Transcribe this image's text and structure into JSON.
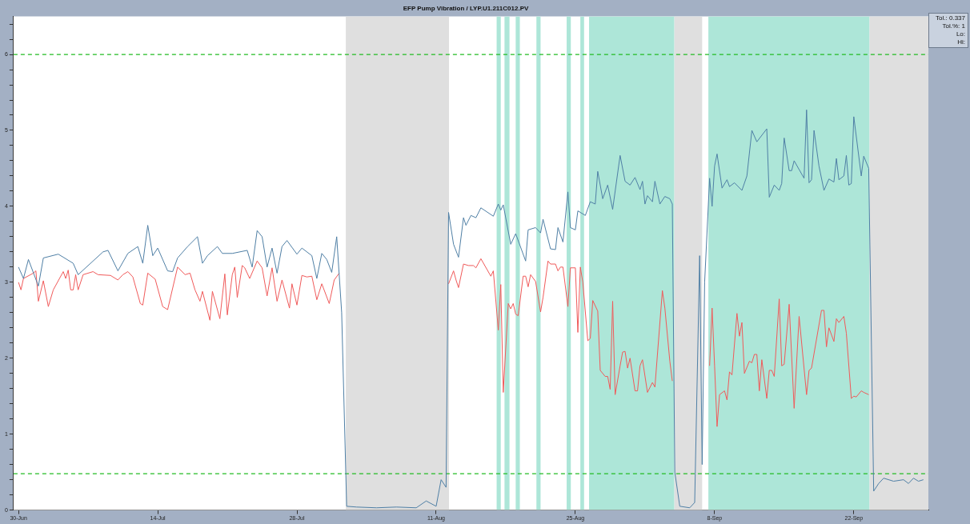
{
  "chart_data": {
    "type": "line",
    "title": "EFP Pump Vibration / LYP.U1.211C012.PV",
    "xlim": [
      "--06-29T12:00",
      "--09-29T12:00"
    ],
    "xticks": [
      {
        "value": "--06-30",
        "label": "30-Jun"
      },
      {
        "value": "--07-14",
        "label": "14-Jul"
      },
      {
        "value": "--07-28",
        "label": "28-Jul"
      },
      {
        "value": "--08-11",
        "label": "11-Aug"
      },
      {
        "value": "--08-25",
        "label": "25-Aug"
      },
      {
        "value": "--09-08",
        "label": "8-Sep"
      },
      {
        "value": "--09-22",
        "label": "22-Sep"
      }
    ],
    "ylim": [
      0,
      6.5
    ],
    "yticks": [
      0,
      {
        "value": 0.2,
        "label": null
      },
      {
        "value": 0.4,
        "label": null
      },
      {
        "value": 0.6,
        "label": null
      },
      {
        "value": 0.8,
        "label": null
      },
      1,
      {
        "value": 1.2,
        "label": null
      },
      {
        "value": 1.4,
        "label": null
      },
      {
        "value": 1.6,
        "label": null
      },
      {
        "value": 1.8,
        "label": null
      },
      2,
      {
        "value": 2.2,
        "label": null
      },
      {
        "value": 2.4,
        "label": null
      },
      {
        "value": 2.6,
        "label": null
      },
      {
        "value": 2.8,
        "label": null
      },
      3,
      {
        "value": 3.2,
        "label": null
      },
      {
        "value": 3.4,
        "label": null
      },
      {
        "value": 3.6,
        "label": null
      },
      {
        "value": 3.8,
        "label": null
      },
      4,
      {
        "value": 4.2,
        "label": null
      },
      {
        "value": 4.4,
        "label": null
      },
      {
        "value": 4.6,
        "label": null
      },
      {
        "value": 4.8,
        "label": null
      },
      5,
      {
        "value": 5.2,
        "label": null
      },
      {
        "value": 5.4,
        "label": null
      },
      {
        "value": 5.6,
        "label": null
      },
      {
        "value": 5.8,
        "label": null
      },
      6,
      {
        "value": 6.2,
        "label": null
      },
      {
        "value": 6.4,
        "label": null
      }
    ],
    "legend": false,
    "bands": [
      {
        "axis": "x",
        "from": "--08-01T22:00",
        "to": "--08-12T07:00",
        "color": "#dfdfdf"
      },
      {
        "axis": "x",
        "from": "--08-17T02:00",
        "to": "--08-17T12:00",
        "color": "#ade6d8"
      },
      {
        "axis": "x",
        "from": "--08-17T21:00",
        "to": "--08-18T09:00",
        "color": "#ade6d8"
      },
      {
        "axis": "x",
        "from": "--08-19T00:00",
        "to": "--08-19T10:00",
        "color": "#ade6d8"
      },
      {
        "axis": "x",
        "from": "--08-21T02:00",
        "to": "--08-21T12:00",
        "color": "#ade6d8"
      },
      {
        "axis": "x",
        "from": "--08-24T03:00",
        "to": "--08-24T13:00",
        "color": "#ade6d8"
      },
      {
        "axis": "x",
        "from": "--08-25T12:00",
        "to": "--08-25T21:00",
        "color": "#ade6d8"
      },
      {
        "axis": "x",
        "from": "--08-26T09:00",
        "to": "--09-03T23:00",
        "color": "#ade6d8"
      },
      {
        "axis": "x",
        "from": "--09-03T23:00",
        "to": "--09-06T18:00",
        "color": "#dfdfdf"
      },
      {
        "axis": "x",
        "from": "--09-07T09:00",
        "to": "--09-23T14:00",
        "color": "#ade6d8"
      },
      {
        "axis": "x",
        "from": "--09-23T14:00",
        "to": "--09-29T12:00",
        "color": "#dfdfdf"
      }
    ],
    "ref_lines": [
      {
        "axis": "y",
        "value": 6,
        "color": "#22bb22",
        "line_style": "dashed"
      },
      {
        "axis": "y",
        "value": 0.48,
        "color": "#22bb22",
        "line_style": "dashed"
      }
    ],
    "annotations": [
      "Tol.: 0.337",
      "Tol.%: 1",
      "Lo:",
      "Hi:"
    ],
    "series": [
      {
        "color": "#4f7fa5",
        "x": [
          "--06-30",
          "--06-30T12:00",
          "--07-01",
          "--07-02",
          "--07-02T12:00",
          "--07-04",
          "--07-05T12:00",
          "--07-06",
          "--07-08T12:00",
          "--07-09",
          "--07-10",
          "--07-11",
          "--07-12",
          "--07-12T12:00",
          "--07-13",
          "--07-13T12:00",
          "--07-14",
          "--07-15",
          "--07-15T12:00",
          "--07-16",
          "--07-17",
          "--07-18",
          "--07-18T12:00",
          "--07-19",
          "--07-20",
          "--07-20T12:00",
          "--07-21T12:00",
          "--07-23",
          "--07-23T12:00",
          "--07-24",
          "--07-24T12:00",
          "--07-25",
          "--07-25T12:00",
          "--07-26",
          "--07-26T12:00",
          "--07-27",
          "--07-28",
          "--07-28T12:00",
          "--07-29T12:00",
          "--07-30",
          "--07-30T12:00",
          "--07-31",
          "--07-31T12:00",
          "--08-01",
          "--08-01T12:00",
          "--08-02",
          "--08-03",
          "--08-05",
          "--08-07",
          "--08-09",
          "--08-10",
          "--08-11",
          "--08-11T12:00",
          "--08-12",
          "--08-12T06:00",
          "--08-12T18:00",
          "--08-13T06:00",
          "--08-13T18:00",
          "--08-14",
          "--08-14T12:00",
          "--08-15",
          "--08-15T12:00",
          "--08-16T18:00",
          "--08-17T06:00",
          "--08-17T12:00",
          "--08-17T18:00",
          "--08-18T12:00",
          "--08-19",
          "--08-20",
          "--08-20T06:00",
          "--08-21",
          "--08-21T12:00",
          "--08-21T18:00",
          "--08-22T12:00",
          "--08-23",
          "--08-23T06:00",
          "--08-23T18:00",
          "--08-24T06:00",
          "--08-24T12:00",
          "--08-25",
          "--08-25T06:00",
          "--08-26",
          "--08-26T12:00",
          "--08-27",
          "--08-27T06:00",
          "--08-27T18:00",
          "--08-28T06:00",
          "--08-28T18:00",
          "--08-29T12:00",
          "--08-30",
          "--08-30T12:00",
          "--08-31",
          "--08-31T12:00",
          "--08-31T18:00",
          "--09-01",
          "--09-01T06:00",
          "--09-01T18:00",
          "--09-02",
          "--09-02T12:00",
          "--09-03",
          "--09-03T12:00",
          "--09-03T18:00",
          "--09-04",
          "--09-04T12:00",
          "--09-05T12:00",
          "--09-06",
          "--09-06T12:00",
          "--09-06T18:00",
          "--09-07",
          "--09-07T12:00",
          "--09-07T18:00",
          "--09-08",
          "--09-08T06:00",
          "--09-08T18:00",
          "--09-09T06:00",
          "--09-09T12:00",
          "--09-10",
          "--09-10T18:00",
          "--09-11T06:00",
          "--09-11T18:00",
          "--09-12T06:00",
          "--09-13T06:00",
          "--09-13T12:00",
          "--09-14",
          "--09-14T12:00",
          "--09-14T18:00",
          "--09-15",
          "--09-15T12:00",
          "--09-15T18:00",
          "--09-16",
          "--09-17",
          "--09-17T06:00",
          "--09-17T12:00",
          "--09-17T18:00",
          "--09-18",
          "--09-18T12:00",
          "--09-19",
          "--09-19T12:00",
          "--09-20",
          "--09-20T06:00",
          "--09-20T12:00",
          "--09-21",
          "--09-21T06:00",
          "--09-21T12:00",
          "--09-21T18:00",
          "--09-22",
          "--09-22T18:00",
          "--09-23",
          "--09-23T12:00",
          "--09-24",
          "--09-24T12:00",
          "--09-25",
          "--09-26",
          "--09-27",
          "--09-27T12:00",
          "--09-28",
          "--09-28T12:00",
          "--09-29"
        ],
        "values": [
          3.2,
          3.05,
          3.3,
          2.95,
          3.32,
          3.37,
          3.25,
          3.1,
          3.4,
          3.42,
          3.15,
          3.38,
          3.47,
          3.25,
          3.75,
          3.35,
          3.45,
          3.15,
          3.14,
          3.32,
          3.47,
          3.6,
          3.25,
          3.35,
          3.47,
          3.38,
          3.38,
          3.42,
          3.2,
          3.68,
          3.6,
          3.2,
          3.45,
          3.12,
          3.47,
          3.55,
          3.37,
          3.45,
          3.35,
          3.05,
          3.38,
          3.3,
          3.13,
          3.6,
          2.6,
          0.05,
          0.04,
          0.03,
          0.04,
          0.03,
          0.12,
          0.05,
          0.4,
          0.3,
          3.92,
          3.5,
          3.33,
          3.85,
          3.75,
          3.88,
          3.85,
          3.98,
          3.87,
          4.03,
          3.95,
          4.02,
          3.5,
          3.64,
          3.28,
          3.69,
          3.72,
          3.65,
          3.83,
          3.44,
          3.43,
          3.72,
          3.53,
          4.19,
          3.72,
          3.69,
          3.94,
          3.88,
          4.06,
          4.03,
          4.46,
          4.1,
          4.28,
          3.96,
          4.67,
          4.33,
          4.28,
          4.38,
          4.22,
          4.33,
          4.03,
          4.14,
          4.06,
          4.33,
          4.03,
          4.13,
          4.1,
          4.03,
          0.5,
          0.05,
          0.03,
          0.1,
          3.35,
          0.6,
          3.0,
          4.37,
          4.0,
          4.53,
          4.69,
          4.24,
          4.35,
          4.26,
          4.31,
          4.21,
          4.4,
          5.0,
          4.85,
          5.02,
          4.12,
          4.28,
          4.21,
          4.3,
          4.9,
          4.47,
          4.47,
          4.6,
          4.37,
          5.27,
          4.31,
          4.35,
          5.0,
          4.53,
          4.21,
          4.36,
          4.32,
          4.63,
          4.35,
          4.4,
          4.67,
          4.28,
          4.3,
          5.18,
          4.4,
          4.66,
          4.5,
          0.25,
          0.35,
          0.42,
          0.38,
          0.4,
          0.35,
          0.42,
          0.38,
          0.4
        ]
      },
      {
        "color": "#f05a5a",
        "x": [
          "--06-30",
          "--06-30T06:00",
          "--06-30T12:00",
          "--07-01T12:00",
          "--07-01T18:00",
          "--07-02",
          "--07-02T12:00",
          "--07-03",
          "--07-03T12:00",
          "--07-04",
          "--07-04T12:00",
          "--07-04T18:00",
          "--07-05",
          "--07-05T06:00",
          "--07-05T12:00",
          "--07-05T18:00",
          "--07-06",
          "--07-06T12:00",
          "--07-07T12:00",
          "--07-08",
          "--07-09T06:00",
          "--07-10",
          "--07-10T12:00",
          "--07-11",
          "--07-11T12:00",
          "--07-12T06:00",
          "--07-12T12:00",
          "--07-13",
          "--07-13T18:00",
          "--07-14T12:00",
          "--07-15",
          "--07-16",
          "--07-16T18:00",
          "--07-17T06:00",
          "--07-17T18:00",
          "--07-18T06:00",
          "--07-18T12:00",
          "--07-19T06:00",
          "--07-19T12:00",
          "--07-20T06:00",
          "--07-20T18:00",
          "--07-21",
          "--07-21T12:00",
          "--07-21T18:00",
          "--07-22",
          "--07-22T12:00",
          "--07-22T18:00",
          "--07-23T06:00",
          "--07-24",
          "--07-24T12:00",
          "--07-25",
          "--07-25T12:00",
          "--07-26",
          "--07-26T12:00",
          "--07-27T06:00",
          "--07-27T12:00",
          "--07-28",
          "--07-28T12:00",
          "--07-29",
          "--07-29T12:00",
          "--07-30",
          "--07-30T12:00",
          "--07-31T06:00",
          "--07-31T18:00",
          "--08-01T06:00",
          "--08-01T12:00",
          "--08-07",
          "--08-12T06:00",
          "--08-12T18:00",
          "--08-13",
          "--08-13T06:00",
          "--08-13T18:00",
          "--08-14T06:00",
          "--08-14T18:00",
          "--08-15",
          "--08-15T12:00",
          "--08-16T12:00",
          "--08-16T18:00",
          "--08-17T06:00",
          "--08-17T12:00",
          "--08-17T18:00",
          "--08-18T06:00",
          "--08-18T12:00",
          "--08-18T18:00",
          "--08-19",
          "--08-19T06:00",
          "--08-19T18:00",
          "--08-20",
          "--08-20T06:00",
          "--08-20T12:00",
          "--08-21",
          "--08-21T12:00",
          "--08-21T18:00",
          "--08-22T06:00",
          "--08-22T12:00",
          "--08-23",
          "--08-23T06:00",
          "--08-23T12:00",
          "--08-23T18:00",
          "--08-24T06:00",
          "--08-24T12:00",
          "--08-25",
          "--08-25T06:00",
          "--08-25T12:00",
          "--08-25T18:00",
          "--08-26T06:00",
          "--08-26T12:00",
          "--08-26T18:00",
          "--08-27T06:00",
          "--08-27T12:00",
          "--08-28",
          "--08-28T06:00",
          "--08-28T12:00",
          "--08-28T18:00",
          "--08-29",
          "--08-29T12:00",
          "--08-29T18:00",
          "--08-30",
          "--08-30T06:00",
          "--08-30T12:00",
          "--08-31",
          "--08-31T06:00",
          "--08-31T12:00",
          "--08-31T18:00",
          "--09-01T06:00",
          "--09-01T18:00",
          "--09-02",
          "--09-02T18:00",
          "--09-03",
          "--09-03T12:00",
          "--09-03T18:00",
          "--09-05",
          "--09-07T12:00",
          "--09-07T18:00",
          "--09-08",
          "--09-08T06:00",
          "--09-08T12:00",
          "--09-09",
          "--09-09T06:00",
          "--09-09T12:00",
          "--09-09T18:00",
          "--09-10T06:00",
          "--09-10T12:00",
          "--09-10T18:00",
          "--09-11",
          "--09-11T12:00",
          "--09-11T18:00",
          "--09-12",
          "--09-12T06:00",
          "--09-12T12:00",
          "--09-12T18:00",
          "--09-13T06:00",
          "--09-13T12:00",
          "--09-13T18:00",
          "--09-14",
          "--09-14T12:00",
          "--09-14T18:00",
          "--09-15",
          "--09-15T12:00",
          "--09-16",
          "--09-16T12:00",
          "--09-17T06:00",
          "--09-17T12:00",
          "--09-17T18:00",
          "--09-18T18:00",
          "--09-19",
          "--09-19T06:00",
          "--09-19T12:00",
          "--09-20",
          "--09-20T06:00",
          "--09-20T12:00",
          "--09-21",
          "--09-21T06:00",
          "--09-21T18:00",
          "--09-22",
          "--09-22T06:00",
          "--09-22T18:00",
          "--09-23",
          "--09-23T12:00"
        ],
        "values": [
          3.0,
          2.9,
          3.05,
          3.12,
          3.15,
          2.75,
          3.02,
          2.68,
          2.9,
          3.02,
          3.14,
          3.05,
          3.16,
          2.9,
          2.9,
          3.1,
          2.9,
          3.1,
          3.14,
          3.1,
          3.09,
          3.03,
          3.1,
          3.14,
          3.07,
          2.72,
          2.7,
          3.12,
          3.04,
          2.68,
          2.64,
          3.2,
          3.1,
          3.12,
          2.9,
          2.75,
          2.88,
          2.5,
          2.88,
          2.52,
          3.11,
          2.57,
          3.1,
          3.2,
          2.8,
          3.22,
          3.19,
          3.05,
          3.28,
          3.19,
          2.82,
          3.19,
          2.75,
          3.03,
          2.66,
          2.98,
          2.7,
          3.09,
          3.07,
          3.08,
          2.77,
          2.98,
          2.72,
          3.03,
          3.12,
          null,
          null,
          2.98,
          3.15,
          3.03,
          2.93,
          3.24,
          3.22,
          3.22,
          3.19,
          3.31,
          3.08,
          3.15,
          2.37,
          2.97,
          1.55,
          2.72,
          2.65,
          2.72,
          2.58,
          2.56,
          3.08,
          3.08,
          2.94,
          3.1,
          3.01,
          2.61,
          2.8,
          3.28,
          3.24,
          3.24,
          3.15,
          3.2,
          3.2,
          2.68,
          3.19,
          3.19,
          2.34,
          3.2,
          3.0,
          2.23,
          2.26,
          2.76,
          2.62,
          1.84,
          1.76,
          1.76,
          1.59,
          2.75,
          1.52,
          1.9,
          2.08,
          2.09,
          1.87,
          2.0,
          1.57,
          1.57,
          1.9,
          1.98,
          1.55,
          1.68,
          1.62,
          2.89,
          2.66,
          1.96,
          1.7,
          null,
          1.9,
          2.66,
          1.9,
          1.1,
          1.52,
          1.57,
          1.45,
          1.82,
          1.78,
          2.59,
          2.29,
          2.47,
          1.8,
          1.96,
          1.94,
          2.05,
          2.05,
          1.57,
          1.98,
          1.47,
          1.84,
          1.84,
          1.76,
          2.78,
          1.9,
          1.92,
          2.71,
          1.34,
          2.55,
          1.52,
          1.84,
          1.87,
          2.63,
          2.63,
          2.15,
          2.4,
          2.22,
          2.52,
          2.47,
          2.55,
          2.33,
          1.47,
          1.5,
          1.49,
          1.57,
          1.55,
          1.52
        ]
      }
    ]
  }
}
